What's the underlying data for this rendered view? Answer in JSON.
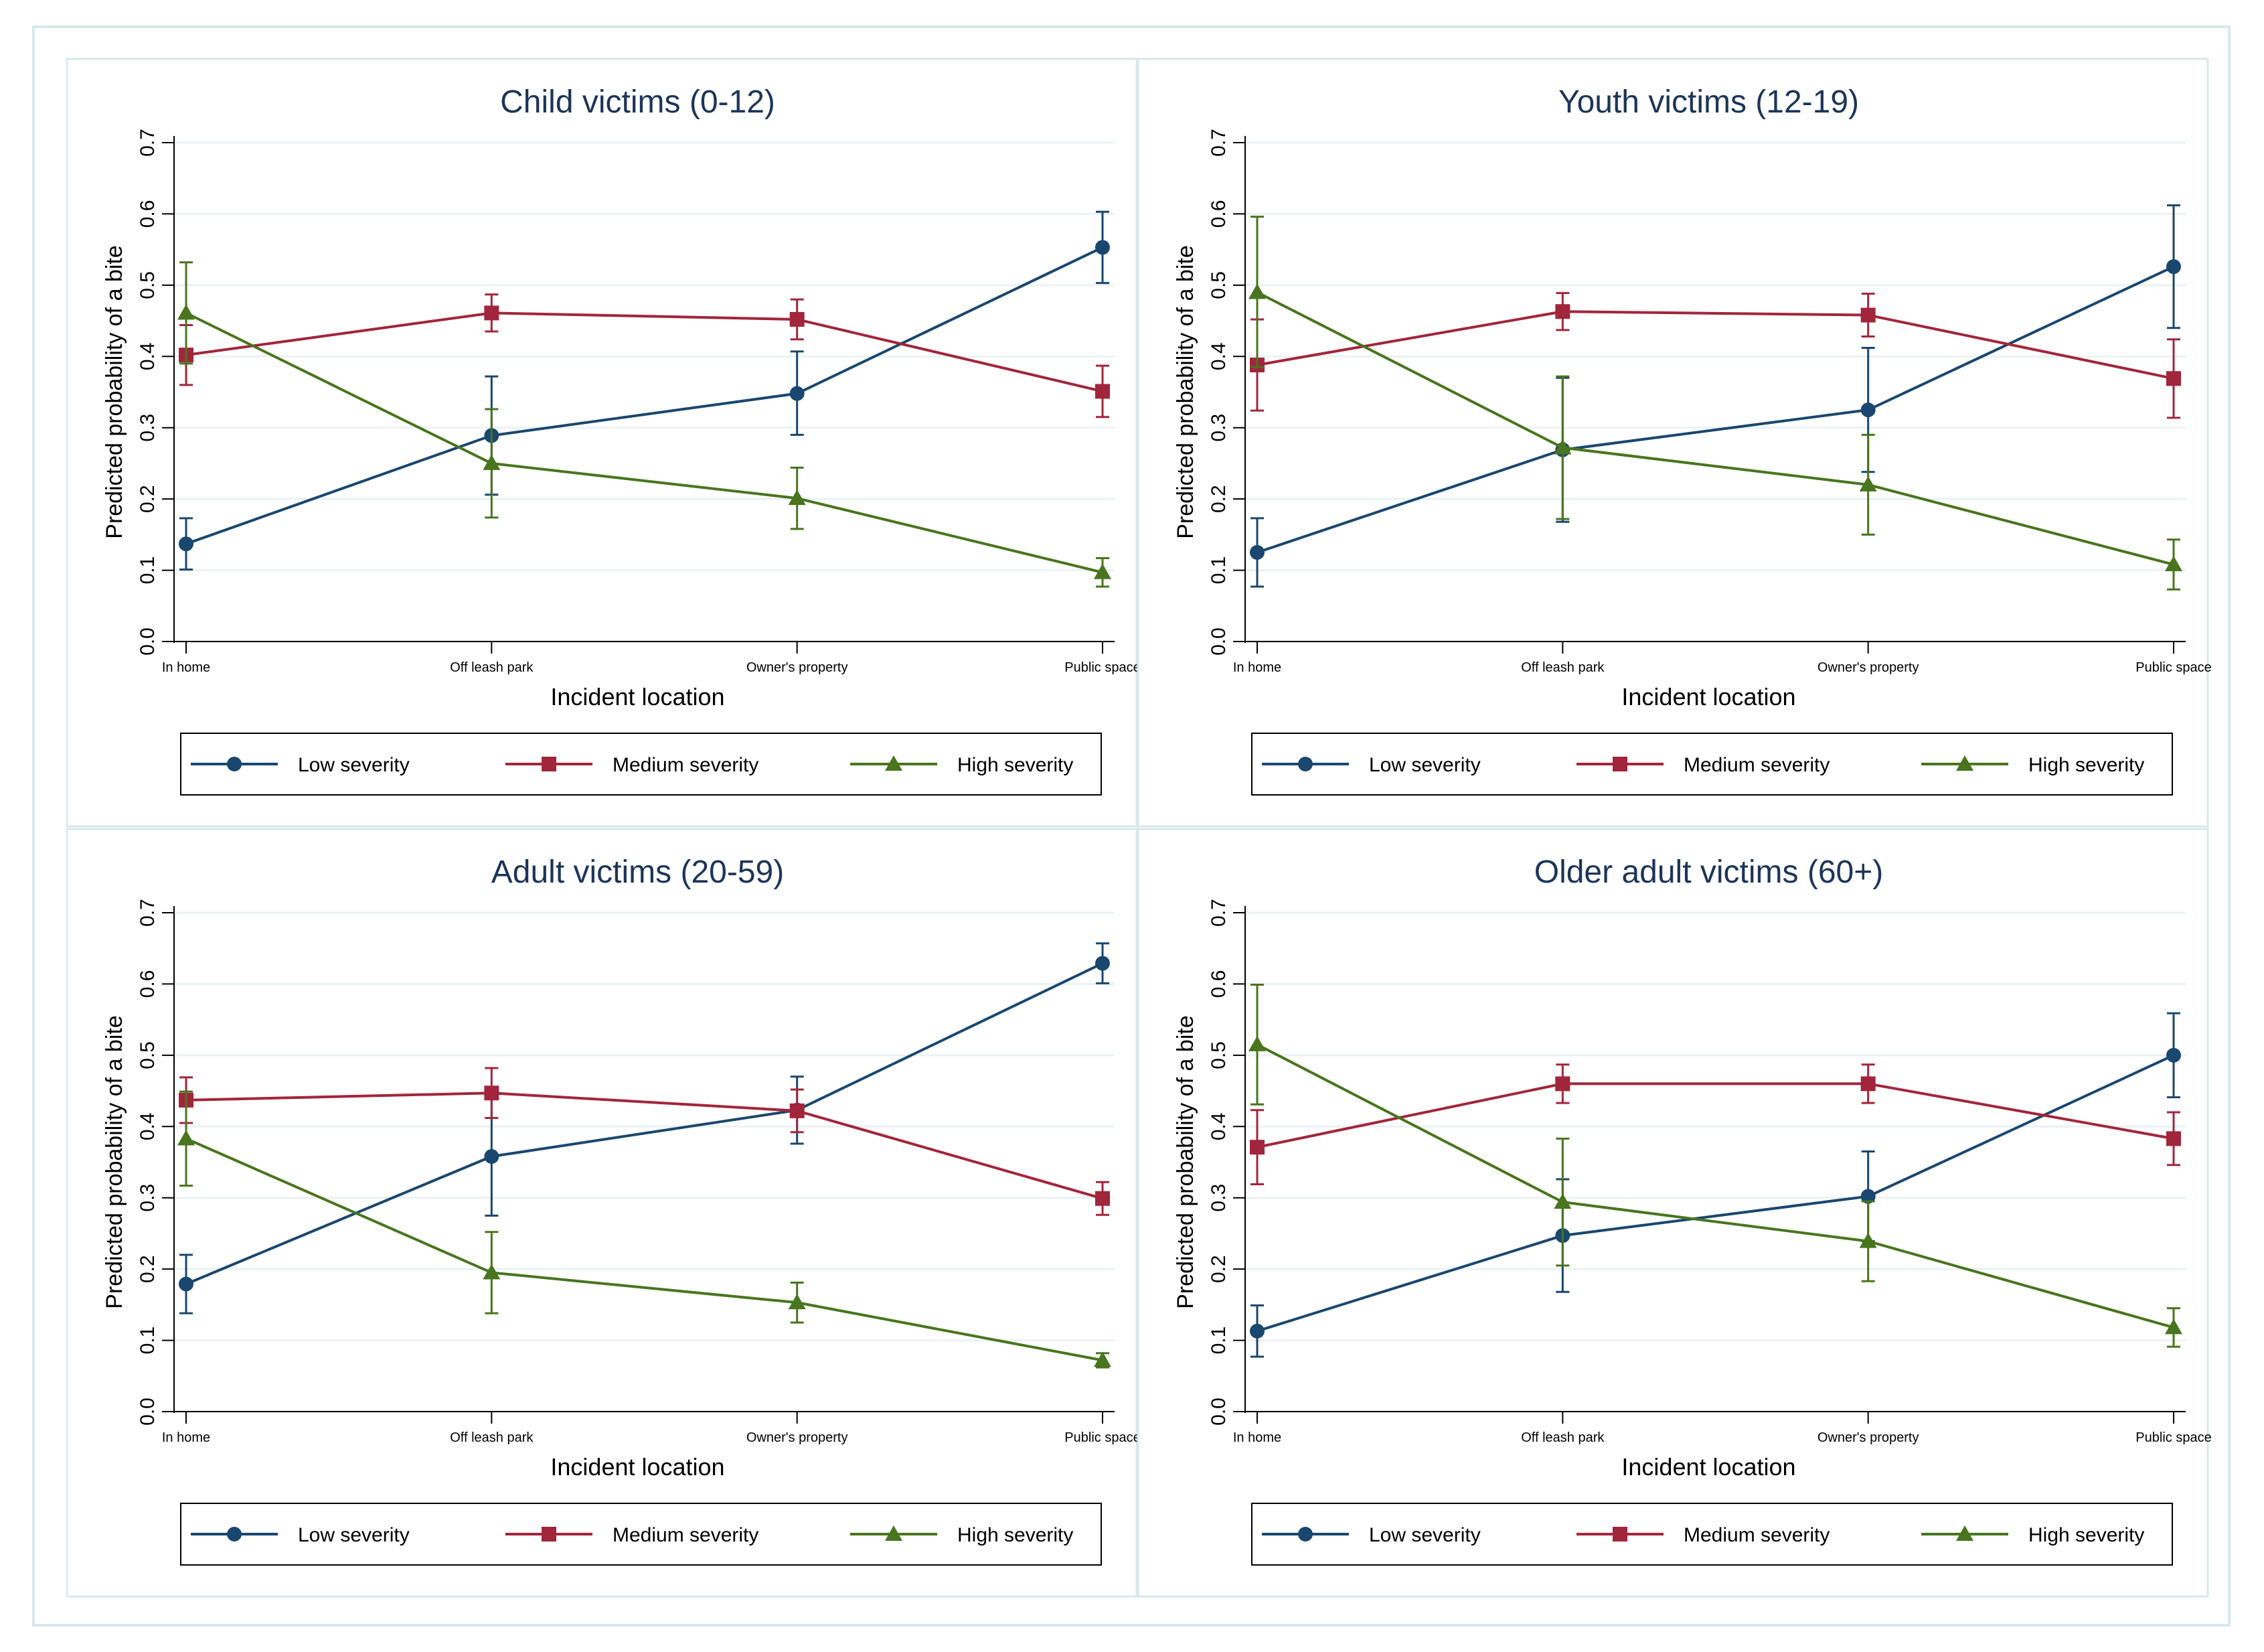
{
  "colors": {
    "low": "#1a476f",
    "medium": "#a2263b",
    "high": "#48751e",
    "title": "#1c3559",
    "grid": "#eaf2f3",
    "frame": "#d7e8ea",
    "axis": "#000000",
    "text": "#000000"
  },
  "chart_data": [
    {
      "type": "line",
      "title": "Child victims (0-12)",
      "xlabel": "Incident location",
      "ylabel": "Predicted probability of a bite",
      "categories": [
        "In home",
        "Off leash park",
        "Owner's property",
        "Public space"
      ],
      "yticks": [
        "0.0",
        "0.1",
        "0.2",
        "0.3",
        "0.4",
        "0.5",
        "0.6",
        "0.7"
      ],
      "ylim": [
        0,
        0.7
      ],
      "grid": true,
      "legend": "bottom",
      "series": [
        {
          "name": "Low severity",
          "key": "low",
          "marker": "circle",
          "values": [
            0.137,
            0.289,
            0.348,
            0.553
          ],
          "ci": [
            [
              0.101,
              0.173
            ],
            [
              0.206,
              0.372
            ],
            [
              0.29,
              0.407
            ],
            [
              0.503,
              0.603
            ]
          ]
        },
        {
          "name": "Medium severity",
          "key": "medium",
          "marker": "square",
          "values": [
            0.402,
            0.461,
            0.452,
            0.351
          ],
          "ci": [
            [
              0.36,
              0.444
            ],
            [
              0.435,
              0.487
            ],
            [
              0.424,
              0.48
            ],
            [
              0.315,
              0.387
            ]
          ]
        },
        {
          "name": "High severity",
          "key": "high",
          "marker": "triangle",
          "values": [
            0.461,
            0.25,
            0.201,
            0.097
          ],
          "ci": [
            [
              0.39,
              0.532
            ],
            [
              0.174,
              0.326
            ],
            [
              0.158,
              0.244
            ],
            [
              0.077,
              0.117
            ]
          ]
        }
      ]
    },
    {
      "type": "line",
      "title": "Youth victims (12-19)",
      "xlabel": "Incident location",
      "ylabel": "Predicted probability of a bite",
      "categories": [
        "In home",
        "Off leash park",
        "Owner's property",
        "Public space"
      ],
      "yticks": [
        "0.0",
        "0.1",
        "0.2",
        "0.3",
        "0.4",
        "0.5",
        "0.6",
        "0.7"
      ],
      "ylim": [
        0,
        0.7
      ],
      "grid": true,
      "legend": "bottom",
      "series": [
        {
          "name": "Low severity",
          "key": "low",
          "marker": "circle",
          "values": [
            0.125,
            0.269,
            0.325,
            0.526
          ],
          "ci": [
            [
              0.077,
              0.173
            ],
            [
              0.168,
              0.37
            ],
            [
              0.238,
              0.412
            ],
            [
              0.44,
              0.612
            ]
          ]
        },
        {
          "name": "Medium severity",
          "key": "medium",
          "marker": "square",
          "values": [
            0.388,
            0.463,
            0.458,
            0.369
          ],
          "ci": [
            [
              0.324,
              0.452
            ],
            [
              0.437,
              0.489
            ],
            [
              0.428,
              0.488
            ],
            [
              0.314,
              0.424
            ]
          ]
        },
        {
          "name": "High severity",
          "key": "high",
          "marker": "triangle",
          "values": [
            0.49,
            0.272,
            0.22,
            0.108
          ],
          "ci": [
            [
              0.385,
              0.596
            ],
            [
              0.172,
              0.372
            ],
            [
              0.15,
              0.29
            ],
            [
              0.073,
              0.143
            ]
          ]
        }
      ]
    },
    {
      "type": "line",
      "title": "Adult victims (20-59)",
      "xlabel": "Incident location",
      "ylabel": "Predicted probability of a bite",
      "categories": [
        "In home",
        "Off leash park",
        "Owner's property",
        "Public space"
      ],
      "yticks": [
        "0.0",
        "0.1",
        "0.2",
        "0.3",
        "0.4",
        "0.5",
        "0.6",
        "0.7"
      ],
      "ylim": [
        0,
        0.7
      ],
      "grid": true,
      "legend": "bottom",
      "series": [
        {
          "name": "Low severity",
          "key": "low",
          "marker": "circle",
          "values": [
            0.179,
            0.358,
            0.423,
            0.629
          ],
          "ci": [
            [
              0.138,
              0.22
            ],
            [
              0.275,
              0.441
            ],
            [
              0.376,
              0.47
            ],
            [
              0.601,
              0.657
            ]
          ]
        },
        {
          "name": "Medium severity",
          "key": "medium",
          "marker": "square",
          "values": [
            0.437,
            0.447,
            0.422,
            0.299
          ],
          "ci": [
            [
              0.405,
              0.469
            ],
            [
              0.412,
              0.482
            ],
            [
              0.392,
              0.452
            ],
            [
              0.276,
              0.322
            ]
          ]
        },
        {
          "name": "High severity",
          "key": "high",
          "marker": "triangle",
          "values": [
            0.383,
            0.195,
            0.153,
            0.072
          ],
          "ci": [
            [
              0.317,
              0.449
            ],
            [
              0.138,
              0.252
            ],
            [
              0.125,
              0.181
            ],
            [
              0.062,
              0.082
            ]
          ]
        }
      ]
    },
    {
      "type": "line",
      "title": "Older adult victims (60+)",
      "xlabel": "Incident location",
      "ylabel": "Predicted probability of a bite",
      "categories": [
        "In home",
        "Off leash park",
        "Owner's property",
        "Public space"
      ],
      "yticks": [
        "0.0",
        "0.1",
        "0.2",
        "0.3",
        "0.4",
        "0.5",
        "0.6",
        "0.7"
      ],
      "ylim": [
        0,
        0.7
      ],
      "grid": true,
      "legend": "bottom",
      "series": [
        {
          "name": "Low severity",
          "key": "low",
          "marker": "circle",
          "values": [
            0.113,
            0.247,
            0.302,
            0.5
          ],
          "ci": [
            [
              0.077,
              0.149
            ],
            [
              0.168,
              0.326
            ],
            [
              0.239,
              0.365
            ],
            [
              0.441,
              0.559
            ]
          ]
        },
        {
          "name": "Medium severity",
          "key": "medium",
          "marker": "square",
          "values": [
            0.371,
            0.46,
            0.46,
            0.383
          ],
          "ci": [
            [
              0.319,
              0.423
            ],
            [
              0.433,
              0.487
            ],
            [
              0.433,
              0.487
            ],
            [
              0.346,
              0.42
            ]
          ]
        },
        {
          "name": "High severity",
          "key": "high",
          "marker": "triangle",
          "values": [
            0.515,
            0.294,
            0.239,
            0.118
          ],
          "ci": [
            [
              0.431,
              0.599
            ],
            [
              0.205,
              0.383
            ],
            [
              0.183,
              0.295
            ],
            [
              0.091,
              0.145
            ]
          ]
        }
      ]
    }
  ]
}
